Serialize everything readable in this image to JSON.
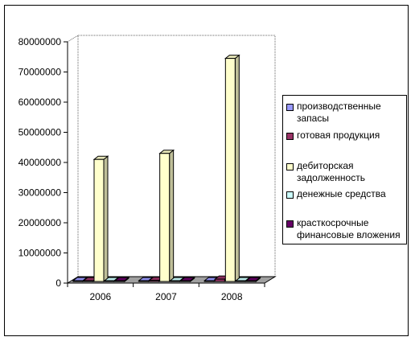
{
  "chart_data": {
    "type": "bar",
    "categories": [
      "2006",
      "2007",
      "2008"
    ],
    "ylim": [
      0,
      80000000
    ],
    "yticks": [
      0,
      10000000,
      20000000,
      30000000,
      40000000,
      50000000,
      60000000,
      70000000,
      80000000
    ],
    "grid": false,
    "legend_position": "right",
    "series": [
      {
        "name": "производственные запасы",
        "color": "#9999FF",
        "values": [
          400000,
          450000,
          500000
        ]
      },
      {
        "name": "готовая продукция",
        "color": "#993366",
        "values": [
          800000,
          900000,
          1300000
        ]
      },
      {
        "name": "дебиторская задолженность",
        "color": "#FFFFCC",
        "values": [
          41000000,
          43000000,
          74500000
        ]
      },
      {
        "name": "денежные средства",
        "color": "#CCFFFF",
        "values": [
          300000,
          300000,
          300000
        ]
      },
      {
        "name": "красткосрочные финансовые вложения",
        "color": "#660066",
        "values": [
          200000,
          200000,
          200000
        ]
      }
    ]
  }
}
